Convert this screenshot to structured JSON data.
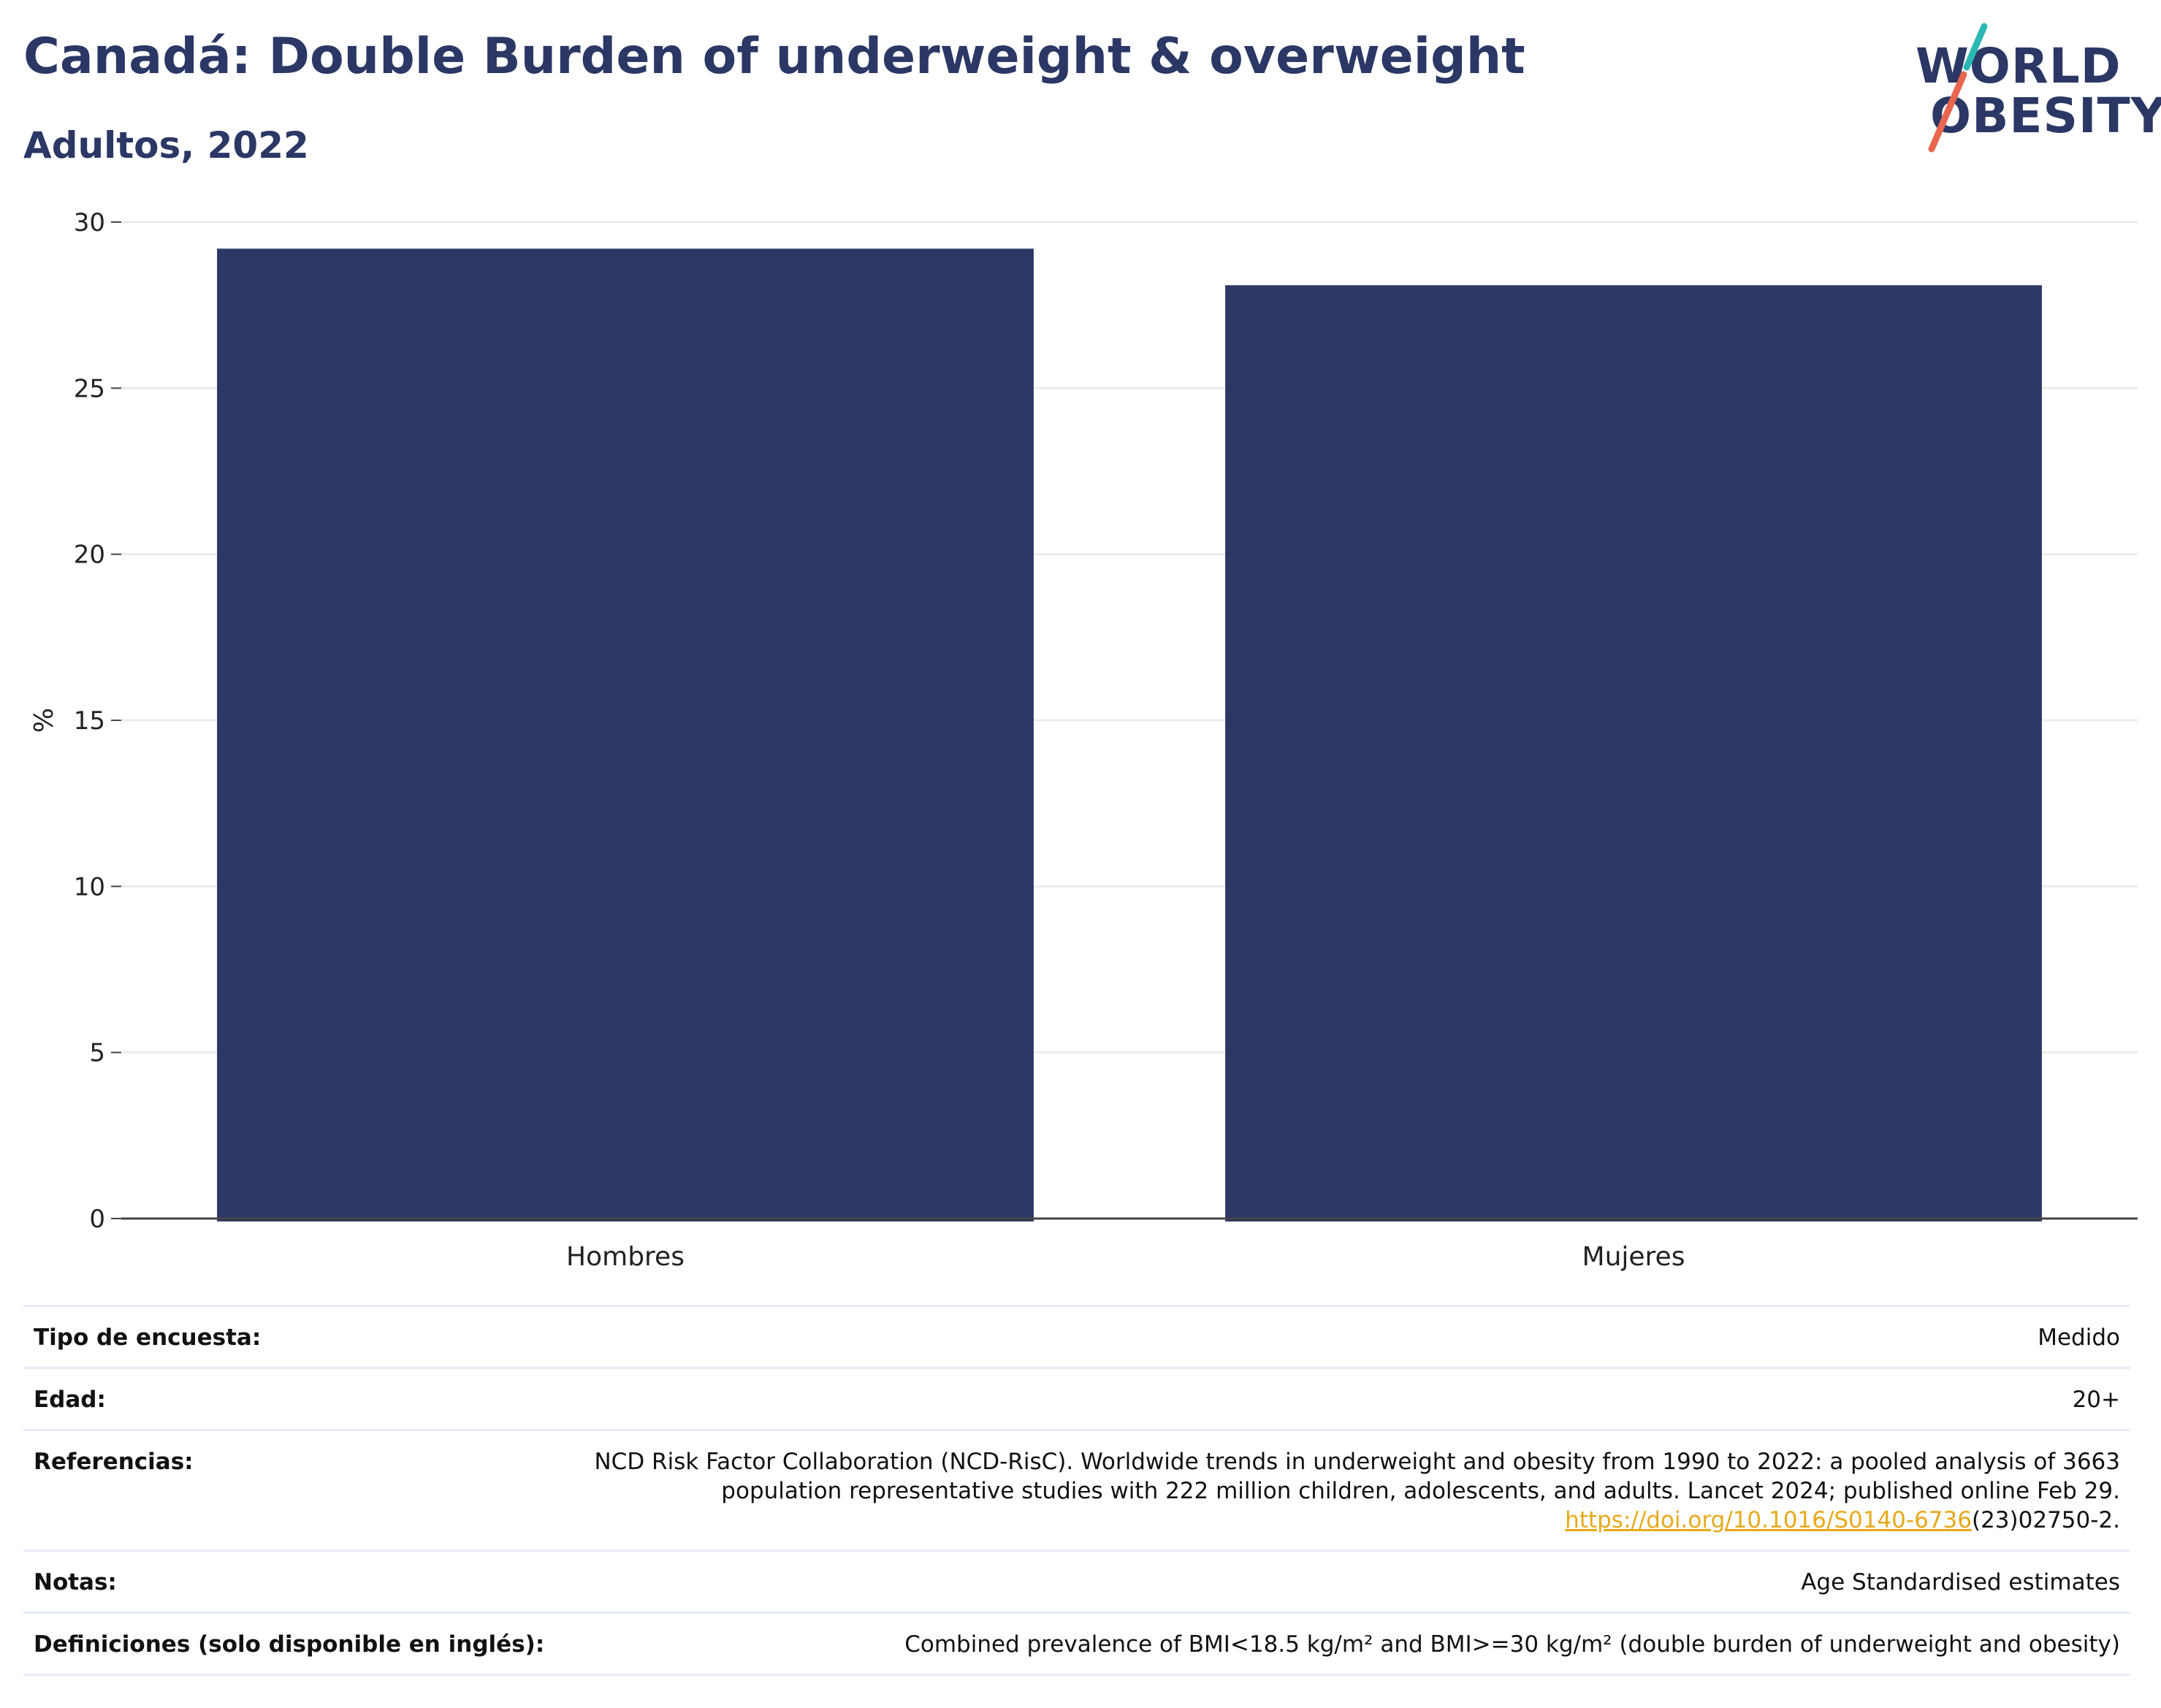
{
  "title": "Canadá: Double Burden of underweight & overweight",
  "subtitle": "Adultos, 2022",
  "logo": {
    "line1": "WORLD",
    "line2": "OBESITY",
    "slash_colors": [
      "#2bb7b3",
      "#e8664f"
    ]
  },
  "colors": {
    "bar": "#2b3765",
    "title": "#2b3765",
    "grid": "#e9ebf0",
    "axis": "#444444",
    "link": "#e7a91a"
  },
  "chart_data": {
    "type": "bar",
    "categories": [
      "Hombres",
      "Mujeres"
    ],
    "values": [
      29.2,
      28.1
    ],
    "ylabel": "%",
    "ylim": [
      0,
      30
    ],
    "yticks": [
      0,
      5,
      10,
      15,
      20,
      25,
      30
    ],
    "grid": true,
    "legend": "none"
  },
  "info": {
    "survey_label": "Tipo de encuesta:",
    "survey_value": "Medido",
    "age_label": "Edad:",
    "age_value": "20+",
    "ref_label": "Referencias:",
    "ref_text": "NCD Risk Factor Collaboration (NCD-RisC). Worldwide trends in underweight and obesity from 1990 to 2022: a pooled analysis of 3663 population representative studies with 222 million children, adolescents, and adults. Lancet 2024; published online Feb 29.",
    "ref_link": "https://doi.org/10.1016/S0140-6736",
    "ref_link_suffix": "(23)02750-2.",
    "notes_label": "Notas:",
    "notes_value": "Age Standardised estimates",
    "def_label": "Definiciones (solo disponible en inglés):",
    "def_value": "Combined prevalence of BMI<18.5 kg/m² and BMI>=30 kg/m² (double burden of underweight and obesity)"
  }
}
